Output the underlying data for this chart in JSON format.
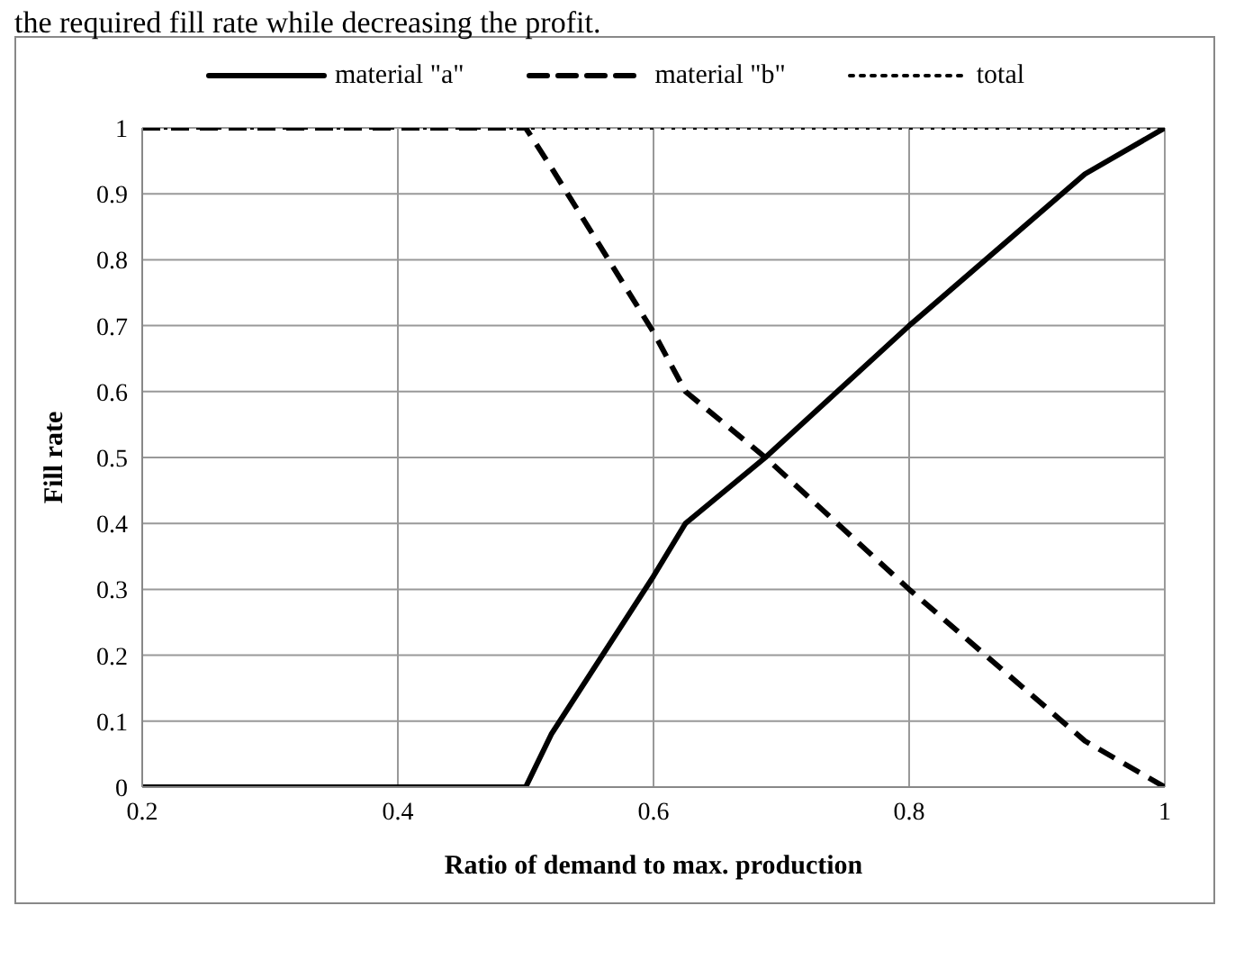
{
  "chart_data": {
    "type": "line",
    "xlabel": "Ratio of demand to max. production",
    "ylabel": "Fill rate",
    "annotations": [
      "the required fill rate while decreasing the profit."
    ],
    "x": [
      0.2,
      0.5,
      0.52,
      0.6,
      0.625,
      0.6875,
      0.8,
      0.9375,
      1
    ],
    "series": [
      {
        "name": "material \"a\"",
        "color": "#000000",
        "line_style": "solid",
        "values": [
          0,
          0,
          0.08,
          0.32,
          0.4,
          0.5,
          0.7,
          0.93,
          1
        ]
      },
      {
        "name": "material \"b\"",
        "color": "#000000",
        "line_style": "dashed",
        "values": [
          1,
          1,
          0.94,
          0.69,
          0.6,
          0.5,
          0.3,
          0.07,
          0
        ]
      },
      {
        "name": "total",
        "color": "#000000",
        "line_style": "dotted",
        "values": [
          1,
          1,
          1,
          1,
          1,
          1,
          1,
          1,
          1
        ]
      }
    ],
    "xlim": [
      0.2,
      1
    ],
    "xticks": [
      0.2,
      0.4,
      0.6,
      0.8,
      1
    ],
    "ylim": [
      0,
      1
    ],
    "yticks": [
      0,
      0.1,
      0.2,
      0.3,
      0.4,
      0.5,
      0.6,
      0.7,
      0.8,
      0.9,
      1
    ],
    "grid": true,
    "legend": "top",
    "marker": "none"
  }
}
